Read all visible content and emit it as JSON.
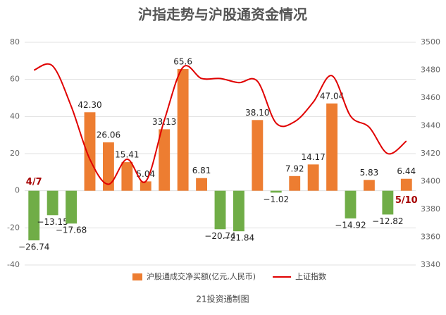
{
  "chart_data": {
    "type": "bar_line",
    "title": "沪指走势与沪股通资金情况",
    "footer": "21投资通制图",
    "categories": [
      null,
      null,
      null,
      null,
      null,
      null,
      null,
      null,
      null,
      null,
      null,
      null,
      null,
      null,
      null,
      null,
      null,
      null,
      null,
      null,
      null
    ],
    "series": [
      {
        "name": "沪股通成交净买额(亿元,人民币)",
        "type": "bar",
        "color": "#ed7d31",
        "negative_color": "#70ad47",
        "values": [
          -26.74,
          -13.15,
          -17.68,
          42.3,
          26.06,
          15.41,
          5.04,
          33.13,
          65.6,
          6.81,
          -20.74,
          -21.84,
          38.1,
          -1.02,
          7.92,
          14.17,
          47.04,
          -14.92,
          5.83,
          -12.82,
          6.44
        ],
        "value_labels": [
          "−26.74",
          "−13.15",
          "−17.68",
          "42.30",
          "26.06",
          "15.41",
          "5.04",
          "33.13",
          "65.6",
          "6.81",
          "−20.74",
          "−21.84",
          "38.10",
          "−1.02",
          "7.92",
          "14.17",
          "47.04",
          "−14.92",
          "5.83",
          "−12.82",
          "6.44"
        ]
      },
      {
        "name": "上证指数",
        "type": "line",
        "axis": "y2",
        "color": "#e00000",
        "values": [
          3480,
          3483,
          3454,
          3416,
          3398,
          3416,
          3400,
          3444,
          3482,
          3474,
          3474,
          3471,
          3472,
          3442,
          3443,
          3457,
          3476,
          3447,
          3439,
          3420,
          3429
        ]
      }
    ],
    "annotations": [
      {
        "text": "4/7",
        "index": 0
      },
      {
        "text": "5/10",
        "index": 20
      }
    ],
    "ylim": [
      -40,
      80
    ],
    "yticks": [
      -40,
      -20,
      0,
      20,
      40,
      60,
      80
    ],
    "y2lim": [
      3340,
      3500
    ],
    "y2ticks": [
      3340,
      3360,
      3380,
      3400,
      3420,
      3440,
      3460,
      3480,
      3500
    ],
    "grid": true,
    "legend": "bottom"
  }
}
